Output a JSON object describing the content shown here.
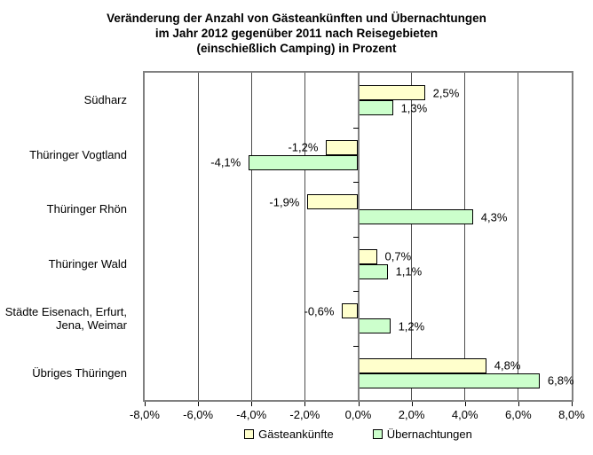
{
  "title": {
    "lines": [
      "Veränderung der Anzahl von Gästeankünften und Übernachtungen",
      "im Jahr 2012 gegenüber 2011 nach Reisegebieten",
      "(einschießlich Camping) in Prozent"
    ]
  },
  "chart_data": {
    "type": "bar",
    "orientation": "horizontal",
    "title": "Veränderung der Anzahl von Gästeankünften und Übernachtungen im Jahr 2012 gegenüber 2011 nach Reisegebieten (einschießlich Camping) in Prozent",
    "categories": [
      "Südharz",
      "Thüringer Vogtland",
      "Thüringer Rhön",
      "Thüringer Wald",
      "Städte Eisenach, Erfurt,\nJena, Weimar",
      "Übriges Thüringen"
    ],
    "series": [
      {
        "name": "Gästeankünfte",
        "color": "#FFFFCC",
        "values": [
          2.5,
          -1.2,
          -1.9,
          0.7,
          -0.6,
          4.8
        ],
        "labels": [
          "2,5%",
          "-1,2%",
          "-1,9%",
          "0,7%",
          "-0,6%",
          "4,8%"
        ]
      },
      {
        "name": "Übernachtungen",
        "color": "#CCFFCC",
        "values": [
          1.3,
          -4.1,
          4.3,
          1.1,
          1.2,
          6.8
        ],
        "labels": [
          "1,3%",
          "-4,1%",
          "4,3%",
          "1,1%",
          "1,2%",
          "6,8%"
        ]
      }
    ],
    "xlim": [
      -8,
      8
    ],
    "x_tick_step": 2,
    "x_tick_labels": [
      "-8,0%",
      "-6,0%",
      "-4,0%",
      "-2,0%",
      "0,0%",
      "2,0%",
      "4,0%",
      "6,0%",
      "8,0%"
    ],
    "xlabel": "",
    "ylabel": "",
    "grid": true,
    "legend_position": "bottom",
    "colors": {
      "plot_border": "#808080",
      "gridline": "#4d4d4d",
      "bar_border": "#000000",
      "series1_fill": "#FFFFCC",
      "series2_fill": "#CCFFCC"
    }
  }
}
